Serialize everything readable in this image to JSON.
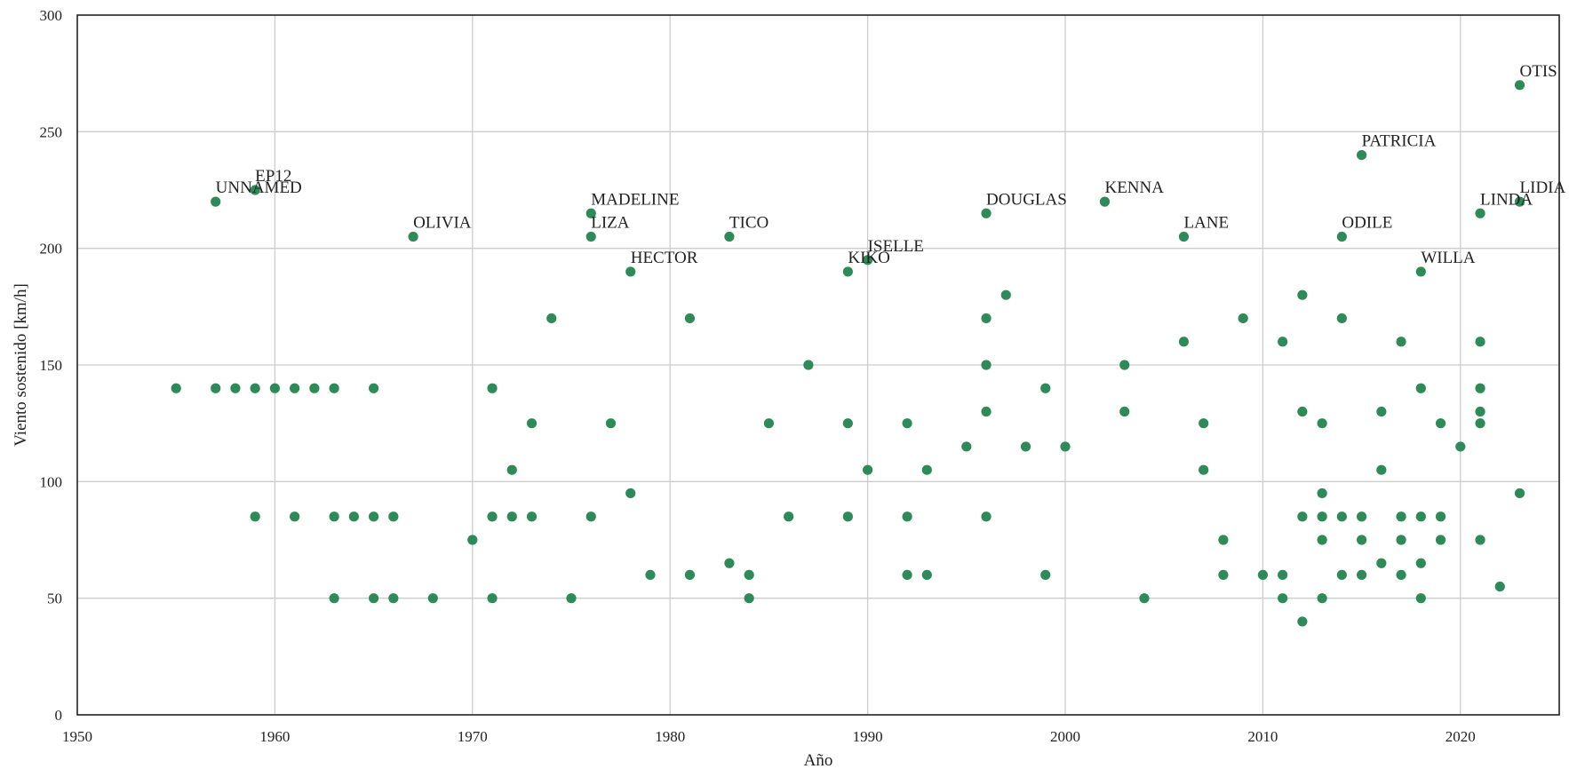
{
  "chart_data": {
    "type": "scatter",
    "title": "",
    "xlabel": "Año",
    "ylabel": "Viento sostenido [km/h]",
    "xlim": [
      1950,
      2025
    ],
    "ylim": [
      0,
      300
    ],
    "xticks": [
      1950,
      1960,
      1970,
      1980,
      1990,
      2000,
      2010,
      2020
    ],
    "yticks": [
      0,
      50,
      100,
      150,
      200,
      250,
      300
    ],
    "grid": true,
    "legend": "none",
    "marker_color": "#2e8b57",
    "points": [
      {
        "x": 1955,
        "y": 140
      },
      {
        "x": 1957,
        "y": 220,
        "label": "UNNAMED"
      },
      {
        "x": 1957,
        "y": 140
      },
      {
        "x": 1958,
        "y": 140
      },
      {
        "x": 1959,
        "y": 225,
        "label": "EP12"
      },
      {
        "x": 1959,
        "y": 140
      },
      {
        "x": 1959,
        "y": 85
      },
      {
        "x": 1960,
        "y": 140
      },
      {
        "x": 1961,
        "y": 140
      },
      {
        "x": 1961,
        "y": 85
      },
      {
        "x": 1962,
        "y": 140
      },
      {
        "x": 1963,
        "y": 140
      },
      {
        "x": 1963,
        "y": 85
      },
      {
        "x": 1963,
        "y": 50
      },
      {
        "x": 1964,
        "y": 85
      },
      {
        "x": 1965,
        "y": 140
      },
      {
        "x": 1965,
        "y": 85
      },
      {
        "x": 1965,
        "y": 50
      },
      {
        "x": 1966,
        "y": 85
      },
      {
        "x": 1966,
        "y": 50
      },
      {
        "x": 1967,
        "y": 205,
        "label": "OLIVIA"
      },
      {
        "x": 1968,
        "y": 50
      },
      {
        "x": 1970,
        "y": 75
      },
      {
        "x": 1971,
        "y": 140
      },
      {
        "x": 1971,
        "y": 85
      },
      {
        "x": 1971,
        "y": 50
      },
      {
        "x": 1972,
        "y": 105
      },
      {
        "x": 1972,
        "y": 85
      },
      {
        "x": 1973,
        "y": 125
      },
      {
        "x": 1973,
        "y": 85
      },
      {
        "x": 1974,
        "y": 170
      },
      {
        "x": 1975,
        "y": 50
      },
      {
        "x": 1976,
        "y": 215,
        "label": "MADELINE"
      },
      {
        "x": 1976,
        "y": 205,
        "label": "LIZA"
      },
      {
        "x": 1976,
        "y": 85
      },
      {
        "x": 1977,
        "y": 125
      },
      {
        "x": 1978,
        "y": 190,
        "label": "HECTOR"
      },
      {
        "x": 1978,
        "y": 95
      },
      {
        "x": 1979,
        "y": 60
      },
      {
        "x": 1981,
        "y": 170
      },
      {
        "x": 1981,
        "y": 60
      },
      {
        "x": 1983,
        "y": 205,
        "label": "TICO"
      },
      {
        "x": 1983,
        "y": 65
      },
      {
        "x": 1984,
        "y": 60
      },
      {
        "x": 1984,
        "y": 50
      },
      {
        "x": 1985,
        "y": 125
      },
      {
        "x": 1986,
        "y": 85
      },
      {
        "x": 1987,
        "y": 150
      },
      {
        "x": 1989,
        "y": 190,
        "label": "KIKO"
      },
      {
        "x": 1989,
        "y": 125
      },
      {
        "x": 1989,
        "y": 85
      },
      {
        "x": 1990,
        "y": 195,
        "label": "ISELLE"
      },
      {
        "x": 1990,
        "y": 105
      },
      {
        "x": 1992,
        "y": 125
      },
      {
        "x": 1992,
        "y": 85
      },
      {
        "x": 1992,
        "y": 60
      },
      {
        "x": 1993,
        "y": 105
      },
      {
        "x": 1993,
        "y": 60
      },
      {
        "x": 1995,
        "y": 115
      },
      {
        "x": 1996,
        "y": 215,
        "label": "DOUGLAS"
      },
      {
        "x": 1996,
        "y": 170
      },
      {
        "x": 1996,
        "y": 150
      },
      {
        "x": 1996,
        "y": 130
      },
      {
        "x": 1996,
        "y": 85
      },
      {
        "x": 1997,
        "y": 180
      },
      {
        "x": 1998,
        "y": 115
      },
      {
        "x": 1999,
        "y": 140
      },
      {
        "x": 1999,
        "y": 60
      },
      {
        "x": 2000,
        "y": 115
      },
      {
        "x": 2002,
        "y": 220,
        "label": "KENNA"
      },
      {
        "x": 2003,
        "y": 150
      },
      {
        "x": 2003,
        "y": 130
      },
      {
        "x": 2004,
        "y": 50
      },
      {
        "x": 2006,
        "y": 205,
        "label": "LANE"
      },
      {
        "x": 2006,
        "y": 160
      },
      {
        "x": 2007,
        "y": 125
      },
      {
        "x": 2007,
        "y": 105
      },
      {
        "x": 2008,
        "y": 75
      },
      {
        "x": 2008,
        "y": 60
      },
      {
        "x": 2009,
        "y": 170
      },
      {
        "x": 2010,
        "y": 60
      },
      {
        "x": 2011,
        "y": 160
      },
      {
        "x": 2011,
        "y": 60
      },
      {
        "x": 2011,
        "y": 50
      },
      {
        "x": 2012,
        "y": 180
      },
      {
        "x": 2012,
        "y": 130
      },
      {
        "x": 2012,
        "y": 85
      },
      {
        "x": 2012,
        "y": 40
      },
      {
        "x": 2013,
        "y": 125
      },
      {
        "x": 2013,
        "y": 95
      },
      {
        "x": 2013,
        "y": 85
      },
      {
        "x": 2013,
        "y": 75
      },
      {
        "x": 2013,
        "y": 50
      },
      {
        "x": 2014,
        "y": 205,
        "label": "ODILE"
      },
      {
        "x": 2014,
        "y": 170
      },
      {
        "x": 2014,
        "y": 85
      },
      {
        "x": 2014,
        "y": 60
      },
      {
        "x": 2015,
        "y": 240,
        "label": "PATRICIA"
      },
      {
        "x": 2015,
        "y": 85
      },
      {
        "x": 2015,
        "y": 75
      },
      {
        "x": 2015,
        "y": 60
      },
      {
        "x": 2016,
        "y": 130
      },
      {
        "x": 2016,
        "y": 105
      },
      {
        "x": 2016,
        "y": 65
      },
      {
        "x": 2017,
        "y": 160
      },
      {
        "x": 2017,
        "y": 85
      },
      {
        "x": 2017,
        "y": 75
      },
      {
        "x": 2017,
        "y": 60
      },
      {
        "x": 2018,
        "y": 190,
        "label": "WILLA"
      },
      {
        "x": 2018,
        "y": 140
      },
      {
        "x": 2018,
        "y": 85
      },
      {
        "x": 2018,
        "y": 65
      },
      {
        "x": 2018,
        "y": 50
      },
      {
        "x": 2019,
        "y": 125
      },
      {
        "x": 2019,
        "y": 85
      },
      {
        "x": 2019,
        "y": 75
      },
      {
        "x": 2020,
        "y": 115
      },
      {
        "x": 2021,
        "y": 215,
        "label": "LINDA"
      },
      {
        "x": 2021,
        "y": 160
      },
      {
        "x": 2021,
        "y": 140
      },
      {
        "x": 2021,
        "y": 130
      },
      {
        "x": 2021,
        "y": 125
      },
      {
        "x": 2021,
        "y": 75
      },
      {
        "x": 2022,
        "y": 55
      },
      {
        "x": 2023,
        "y": 270,
        "label": "OTIS"
      },
      {
        "x": 2023,
        "y": 220,
        "label": "LIDIA"
      },
      {
        "x": 2023,
        "y": 95
      }
    ]
  }
}
